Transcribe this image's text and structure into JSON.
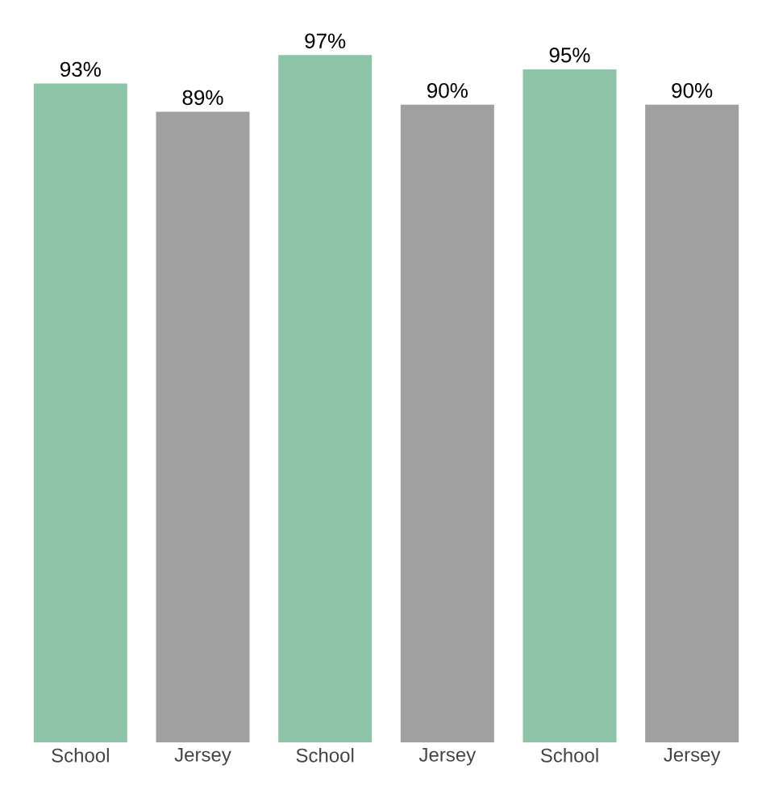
{
  "chart_data": {
    "type": "bar",
    "categories": [
      "School",
      "Jersey",
      "School",
      "Jersey",
      "School",
      "Jersey"
    ],
    "values": [
      93,
      89,
      97,
      90,
      95,
      90
    ],
    "colors": [
      "#8dc3a7",
      "#a0a0a0",
      "#8dc3a7",
      "#a0a0a0",
      "#8dc3a7",
      "#a0a0a0"
    ],
    "value_labels": [
      "93%",
      "89%",
      "97%",
      "90%",
      "95%",
      "90%"
    ]
  }
}
